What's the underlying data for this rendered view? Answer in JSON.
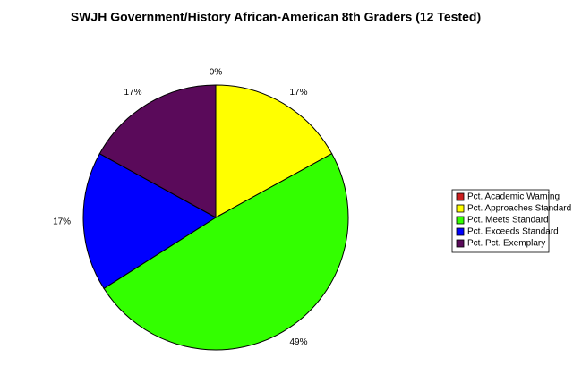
{
  "chart_data": {
    "type": "pie",
    "title": "SWJH Government/History African-American 8th Graders (12 Tested)",
    "categories": [
      "Pct. Academic Warning",
      "Pct. Approaches Standard",
      "Pct. Meets Standard",
      "Pct. Exceeds Standard",
      "Pct. Pct. Exemplary"
    ],
    "values": [
      0,
      17,
      49,
      17,
      17
    ],
    "value_labels": [
      "0%",
      "17%",
      "49%",
      "17%",
      "17%"
    ],
    "colors": [
      "#cc1f1f",
      "#ffff00",
      "#33ff00",
      "#0000ff",
      "#5a0a5a"
    ]
  }
}
